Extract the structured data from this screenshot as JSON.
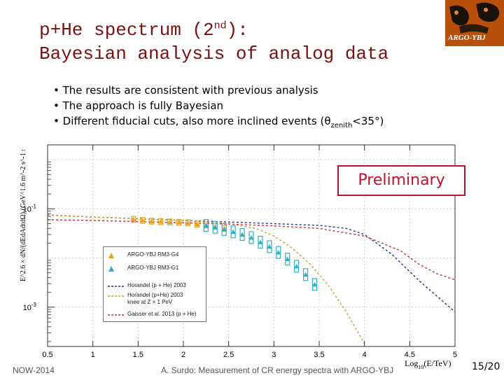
{
  "slide": {
    "title_line1_a": "p+He spectrum (2",
    "title_line1_sup": "nd",
    "title_line1_b": "):",
    "title_line2": "Bayesian analysis of analog data",
    "logo_text": "ARGO-YBJ",
    "bullets": [
      {
        "text": "The results are consistent with previous analysis"
      },
      {
        "text": "The approach is fully Bayesian"
      },
      {
        "text_a": "Different fiducial cuts, also more inclined events (θ",
        "sub": "zenith",
        "text_b": "<35°)"
      }
    ],
    "bullet_char": "•",
    "preliminary": "Preliminary",
    "footer_left": "NOW-2014",
    "footer_center": "A. Surdo: Measurement of CR energy spectra with ARGO-YBJ",
    "page_number": "15/20"
  },
  "chart_data": {
    "type": "scatter",
    "xlabel": "Log10(E/TeV)",
    "ylabel": "E^2.6 × dN/(dEdAdtdΩ) (GeV^1.6 m^-2 s^-1 sr^-1)",
    "xlim": [
      0.5,
      5.0
    ],
    "ylim_log10": [
      -3.8,
      0.3
    ],
    "yscale": "log",
    "xticks": [
      "0.5",
      "1",
      "1.5",
      "2",
      "2.5",
      "3",
      "3.5",
      "4",
      "4.5",
      "5"
    ],
    "yticks": [
      "10^-1",
      "10^-3"
    ],
    "grid": true,
    "legend_position": "bottom-left",
    "legend": [
      {
        "label": "ARGO-YBJ RM3-G4",
        "color": "#e6a020",
        "marker": "triangle"
      },
      {
        "label": "ARGO-YBJ RM3-G1",
        "color": "#30b0c8",
        "marker": "triangle"
      },
      {
        "label": "Horandel (p + He) 2003",
        "color": "#223388",
        "marker": "dashed"
      },
      {
        "label": "Horandel (p+He) 2003\nknee at Z × 1 PeV",
        "color": "#c8a030",
        "marker": "dashed"
      },
      {
        "label": "Gaisser et al. 2013 (p + He)",
        "color": "#c03040",
        "marker": "dashed"
      }
    ],
    "series": [
      {
        "name": "ARGO-YBJ RM3-G4",
        "x": [
          1.45,
          1.55,
          1.65,
          1.75,
          1.85,
          1.95,
          2.05,
          2.15,
          2.25,
          2.35,
          2.45
        ],
        "y": [
          0.061,
          0.058,
          0.056,
          0.055,
          0.054,
          0.053,
          0.052,
          0.049,
          0.047,
          0.044,
          0.04
        ],
        "err_log10": 0.06
      },
      {
        "name": "ARGO-YBJ RM3-G1",
        "x": [
          2.25,
          2.35,
          2.45,
          2.55,
          2.65,
          2.75,
          2.85,
          2.95,
          3.05,
          3.15,
          3.25,
          3.35,
          3.45
        ],
        "y": [
          0.046,
          0.042,
          0.038,
          0.034,
          0.03,
          0.026,
          0.021,
          0.017,
          0.013,
          0.0095,
          0.0068,
          0.0046,
          0.0029
        ],
        "err_log10": 0.12
      },
      {
        "name": "Horandel (p + He) 2003",
        "x": [
          0.5,
          1.0,
          1.5,
          2.0,
          2.5,
          3.0,
          3.5,
          3.8,
          4.0,
          4.3,
          4.6,
          5.0
        ],
        "y": [
          0.075,
          0.068,
          0.063,
          0.058,
          0.054,
          0.05,
          0.046,
          0.04,
          0.03,
          0.012,
          0.0035,
          0.0008
        ]
      },
      {
        "name": "Horandel (p+He) 2003 knee at Z × 1 PeV",
        "x": [
          0.5,
          1.0,
          1.5,
          2.0,
          2.5,
          2.8,
          3.0,
          3.2,
          3.4,
          3.6,
          3.8,
          4.0
        ],
        "y": [
          0.075,
          0.068,
          0.063,
          0.058,
          0.05,
          0.04,
          0.028,
          0.016,
          0.0075,
          0.0028,
          0.0008,
          0.00018
        ]
      },
      {
        "name": "Gaisser et al. 2013 (p + He)",
        "x": [
          0.5,
          1.0,
          1.5,
          2.0,
          2.5,
          3.0,
          3.5,
          4.0,
          4.4,
          4.6,
          4.8,
          5.0
        ],
        "y": [
          0.06,
          0.058,
          0.055,
          0.052,
          0.049,
          0.045,
          0.04,
          0.028,
          0.014,
          0.0075,
          0.0048,
          0.0036
        ]
      }
    ]
  }
}
